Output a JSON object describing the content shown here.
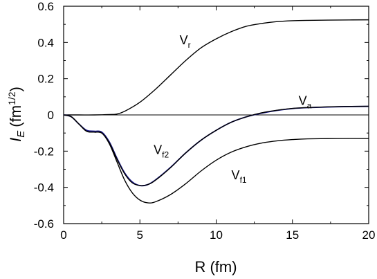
{
  "chart_data": {
    "type": "line",
    "xlabel": "R (fm)",
    "ylabel_main": "I",
    "ylabel_sub": "E",
    "ylabel_unit": "(fm",
    "ylabel_exp": "1/2",
    "ylabel_close": ")",
    "xlim": [
      0,
      20
    ],
    "ylim": [
      -0.6,
      0.6
    ],
    "xticks": [
      0,
      5,
      10,
      15,
      20
    ],
    "xtick_labels": [
      "0",
      "5",
      "10",
      "15",
      "20"
    ],
    "yticks": [
      -0.6,
      -0.4,
      -0.2,
      0,
      0.2,
      0.4,
      0.6
    ],
    "ytick_labels": [
      "-0.6",
      "-0.4",
      "-0.2",
      "0",
      "0.2",
      "0.4",
      "0.6"
    ],
    "grid": false,
    "zero_line": true,
    "series": [
      {
        "name": "Vr",
        "label_main": "V",
        "label_sub": "r",
        "color": "#000000",
        "x": [
          0,
          1,
          2,
          3,
          3.5,
          4,
          5,
          6,
          7,
          8,
          9,
          10,
          11,
          12,
          13,
          14,
          15,
          16,
          18,
          20
        ],
        "y": [
          0,
          0,
          0,
          0.002,
          0.005,
          0.02,
          0.07,
          0.14,
          0.22,
          0.3,
          0.37,
          0.42,
          0.46,
          0.49,
          0.505,
          0.515,
          0.52,
          0.522,
          0.524,
          0.525
        ]
      },
      {
        "name": "Va",
        "label_main": "V",
        "label_sub": "a",
        "color": "#1a1a8c",
        "x": [
          0,
          0.5,
          1,
          1.5,
          2,
          2.5,
          3,
          3.5,
          4,
          4.5,
          5,
          5.5,
          6,
          7,
          8,
          9,
          10,
          11,
          12,
          13,
          14,
          15,
          16,
          18,
          20
        ],
        "y": [
          0,
          -0.01,
          -0.05,
          -0.085,
          -0.09,
          -0.095,
          -0.15,
          -0.24,
          -0.32,
          -0.37,
          -0.39,
          -0.385,
          -0.36,
          -0.29,
          -0.21,
          -0.14,
          -0.085,
          -0.04,
          -0.01,
          0.01,
          0.025,
          0.035,
          0.04,
          0.045,
          0.047
        ]
      },
      {
        "name": "Vf2",
        "label_main": "V",
        "label_sub": "f2",
        "color": "#000000",
        "x": [
          0,
          0.5,
          1,
          1.5,
          2,
          2.5,
          3,
          3.5,
          4,
          4.5,
          5,
          5.5,
          6,
          7,
          8,
          9,
          10,
          11,
          12,
          13,
          14,
          15,
          16,
          18,
          20
        ],
        "y": [
          0,
          -0.01,
          -0.05,
          -0.09,
          -0.095,
          -0.1,
          -0.155,
          -0.245,
          -0.325,
          -0.375,
          -0.39,
          -0.385,
          -0.362,
          -0.292,
          -0.21,
          -0.14,
          -0.085,
          -0.04,
          -0.01,
          0.012,
          0.026,
          0.036,
          0.041,
          0.046,
          0.048
        ]
      },
      {
        "name": "Vf1",
        "label_main": "V",
        "label_sub": "f1",
        "color": "#000000",
        "x": [
          0,
          0.5,
          1,
          1.5,
          2,
          2.5,
          3,
          3.5,
          4,
          4.5,
          5,
          5.5,
          6,
          7,
          8,
          9,
          10,
          11,
          12,
          13,
          14,
          15,
          16,
          18,
          20
        ],
        "y": [
          0,
          -0.01,
          -0.05,
          -0.09,
          -0.095,
          -0.1,
          -0.16,
          -0.26,
          -0.36,
          -0.43,
          -0.47,
          -0.485,
          -0.48,
          -0.44,
          -0.38,
          -0.31,
          -0.25,
          -0.205,
          -0.175,
          -0.155,
          -0.143,
          -0.136,
          -0.132,
          -0.13,
          -0.13
        ]
      }
    ],
    "annotations": [
      {
        "series": "Vr",
        "text_main": "V",
        "text_sub": "r",
        "x": 7.6,
        "y": 0.39
      },
      {
        "series": "Va",
        "text_main": "V",
        "text_sub": "a",
        "x": 15.4,
        "y": 0.055
      },
      {
        "series": "Vf2",
        "text_main": "V",
        "text_sub": "f2",
        "x": 5.9,
        "y": -0.215
      },
      {
        "series": "Vf1",
        "text_main": "V",
        "text_sub": "f1",
        "x": 11.0,
        "y": -0.355
      }
    ]
  }
}
